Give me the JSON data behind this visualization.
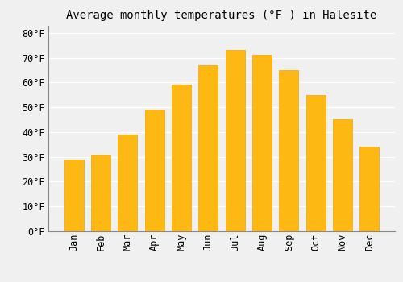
{
  "months": [
    "Jan",
    "Feb",
    "Mar",
    "Apr",
    "May",
    "Jun",
    "Jul",
    "Aug",
    "Sep",
    "Oct",
    "Nov",
    "Dec"
  ],
  "values": [
    29,
    31,
    39,
    49,
    59,
    67,
    73,
    71,
    65,
    55,
    45,
    34
  ],
  "bar_color": "#FDB813",
  "bar_edge_color": "#F0A500",
  "title": "Average monthly temperatures (°F ) in Halesite",
  "ylim": [
    0,
    83
  ],
  "yticks": [
    0,
    10,
    20,
    30,
    40,
    50,
    60,
    70,
    80
  ],
  "ytick_labels": [
    "0°F",
    "10°F",
    "20°F",
    "30°F",
    "40°F",
    "50°F",
    "60°F",
    "70°F",
    "80°F"
  ],
  "background_color": "#f0f0f0",
  "grid_color": "#ffffff",
  "title_fontsize": 10,
  "tick_fontsize": 8.5
}
